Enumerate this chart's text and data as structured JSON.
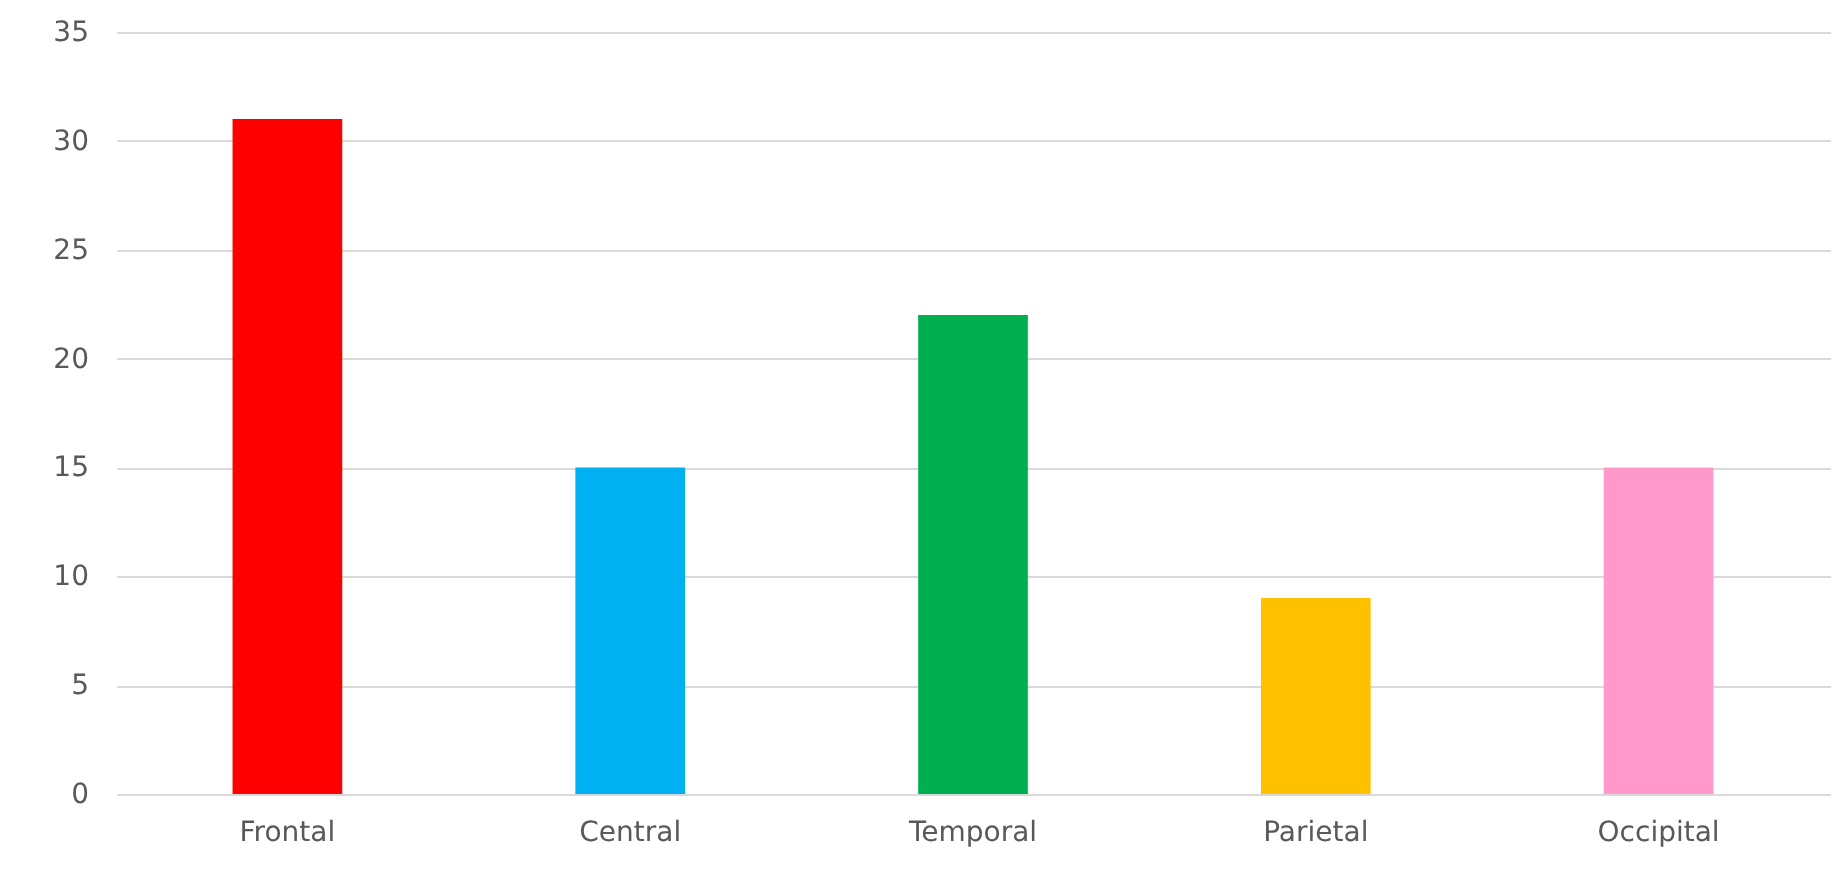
{
  "chart_data": {
    "type": "bar",
    "categories": [
      "Frontal",
      "Central",
      "Temporal",
      "Parietal",
      "Occipital"
    ],
    "values": [
      31,
      15,
      22,
      9,
      15
    ],
    "colors": [
      "#ff0000",
      "#00b0f0",
      "#00b050",
      "#ffc000",
      "#ff99cc"
    ],
    "ylim": [
      0,
      35
    ],
    "yticks": [
      0,
      5,
      10,
      15,
      20,
      25,
      30,
      35
    ],
    "grid": "y"
  }
}
